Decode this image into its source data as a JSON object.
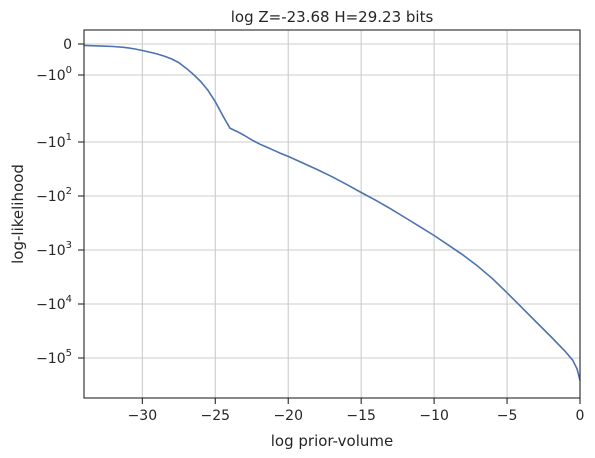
{
  "chart_data": {
    "type": "line",
    "title": "log Z=-23.68 H=29.23 bits",
    "xlabel": "log prior-volume",
    "ylabel": "log-likelihood",
    "xlim": [
      -34,
      0
    ],
    "x_ticks": [
      -30,
      -25,
      -20,
      -15,
      -10,
      -5,
      0
    ],
    "x_tick_labels": [
      "−30",
      "−25",
      "−20",
      "−15",
      "−10",
      "−5",
      "0"
    ],
    "y_scale": "symlog",
    "y_ticks": [
      0,
      -1,
      -10,
      -100,
      -1000,
      -10000,
      -100000
    ],
    "y_tick_labels": [
      {
        "text": "0",
        "base": "",
        "exp": ""
      },
      {
        "text": "",
        "base": "−10",
        "exp": "0"
      },
      {
        "text": "",
        "base": "−10",
        "exp": "1"
      },
      {
        "text": "",
        "base": "−10",
        "exp": "2"
      },
      {
        "text": "",
        "base": "−10",
        "exp": "3"
      },
      {
        "text": "",
        "base": "−10",
        "exp": "4"
      },
      {
        "text": "",
        "base": "−10",
        "exp": "5"
      }
    ],
    "grid": true,
    "line_color": "#4c72b0",
    "series": [
      {
        "x": [
          -34,
          -33,
          -32,
          -31.2,
          -30.5,
          -30,
          -29.5,
          -29,
          -28.5,
          -28,
          -27.5,
          -27,
          -26.5,
          -26,
          -25.5,
          -25,
          -24.5,
          -24,
          -23.5,
          -23,
          -22.5,
          -22,
          -21.5,
          -21,
          -20.5,
          -20,
          -19,
          -18,
          -17,
          -16,
          -15,
          -14,
          -13,
          -12,
          -11,
          -10,
          -9,
          -8,
          -7,
          -6,
          -5,
          -4,
          -3,
          -2,
          -1,
          -0.5,
          -0.2,
          0
        ],
        "y": [
          -0.045,
          -0.06,
          -0.08,
          -0.11,
          -0.16,
          -0.21,
          -0.26,
          -0.32,
          -0.39,
          -0.48,
          -0.6,
          -0.78,
          -0.98,
          -1.25,
          -1.7,
          -2.5,
          -4.0,
          -6.2,
          -7.0,
          -8.0,
          -9.3,
          -10.8,
          -12.4,
          -14.2,
          -16.3,
          -18.5,
          -24.5,
          -32.5,
          -44,
          -61,
          -86,
          -120,
          -172,
          -250,
          -365,
          -540,
          -820,
          -1250,
          -2000,
          -3400,
          -6200,
          -11500,
          -21500,
          -40000,
          -76000,
          -110000,
          -160000,
          -260000
        ]
      }
    ]
  }
}
